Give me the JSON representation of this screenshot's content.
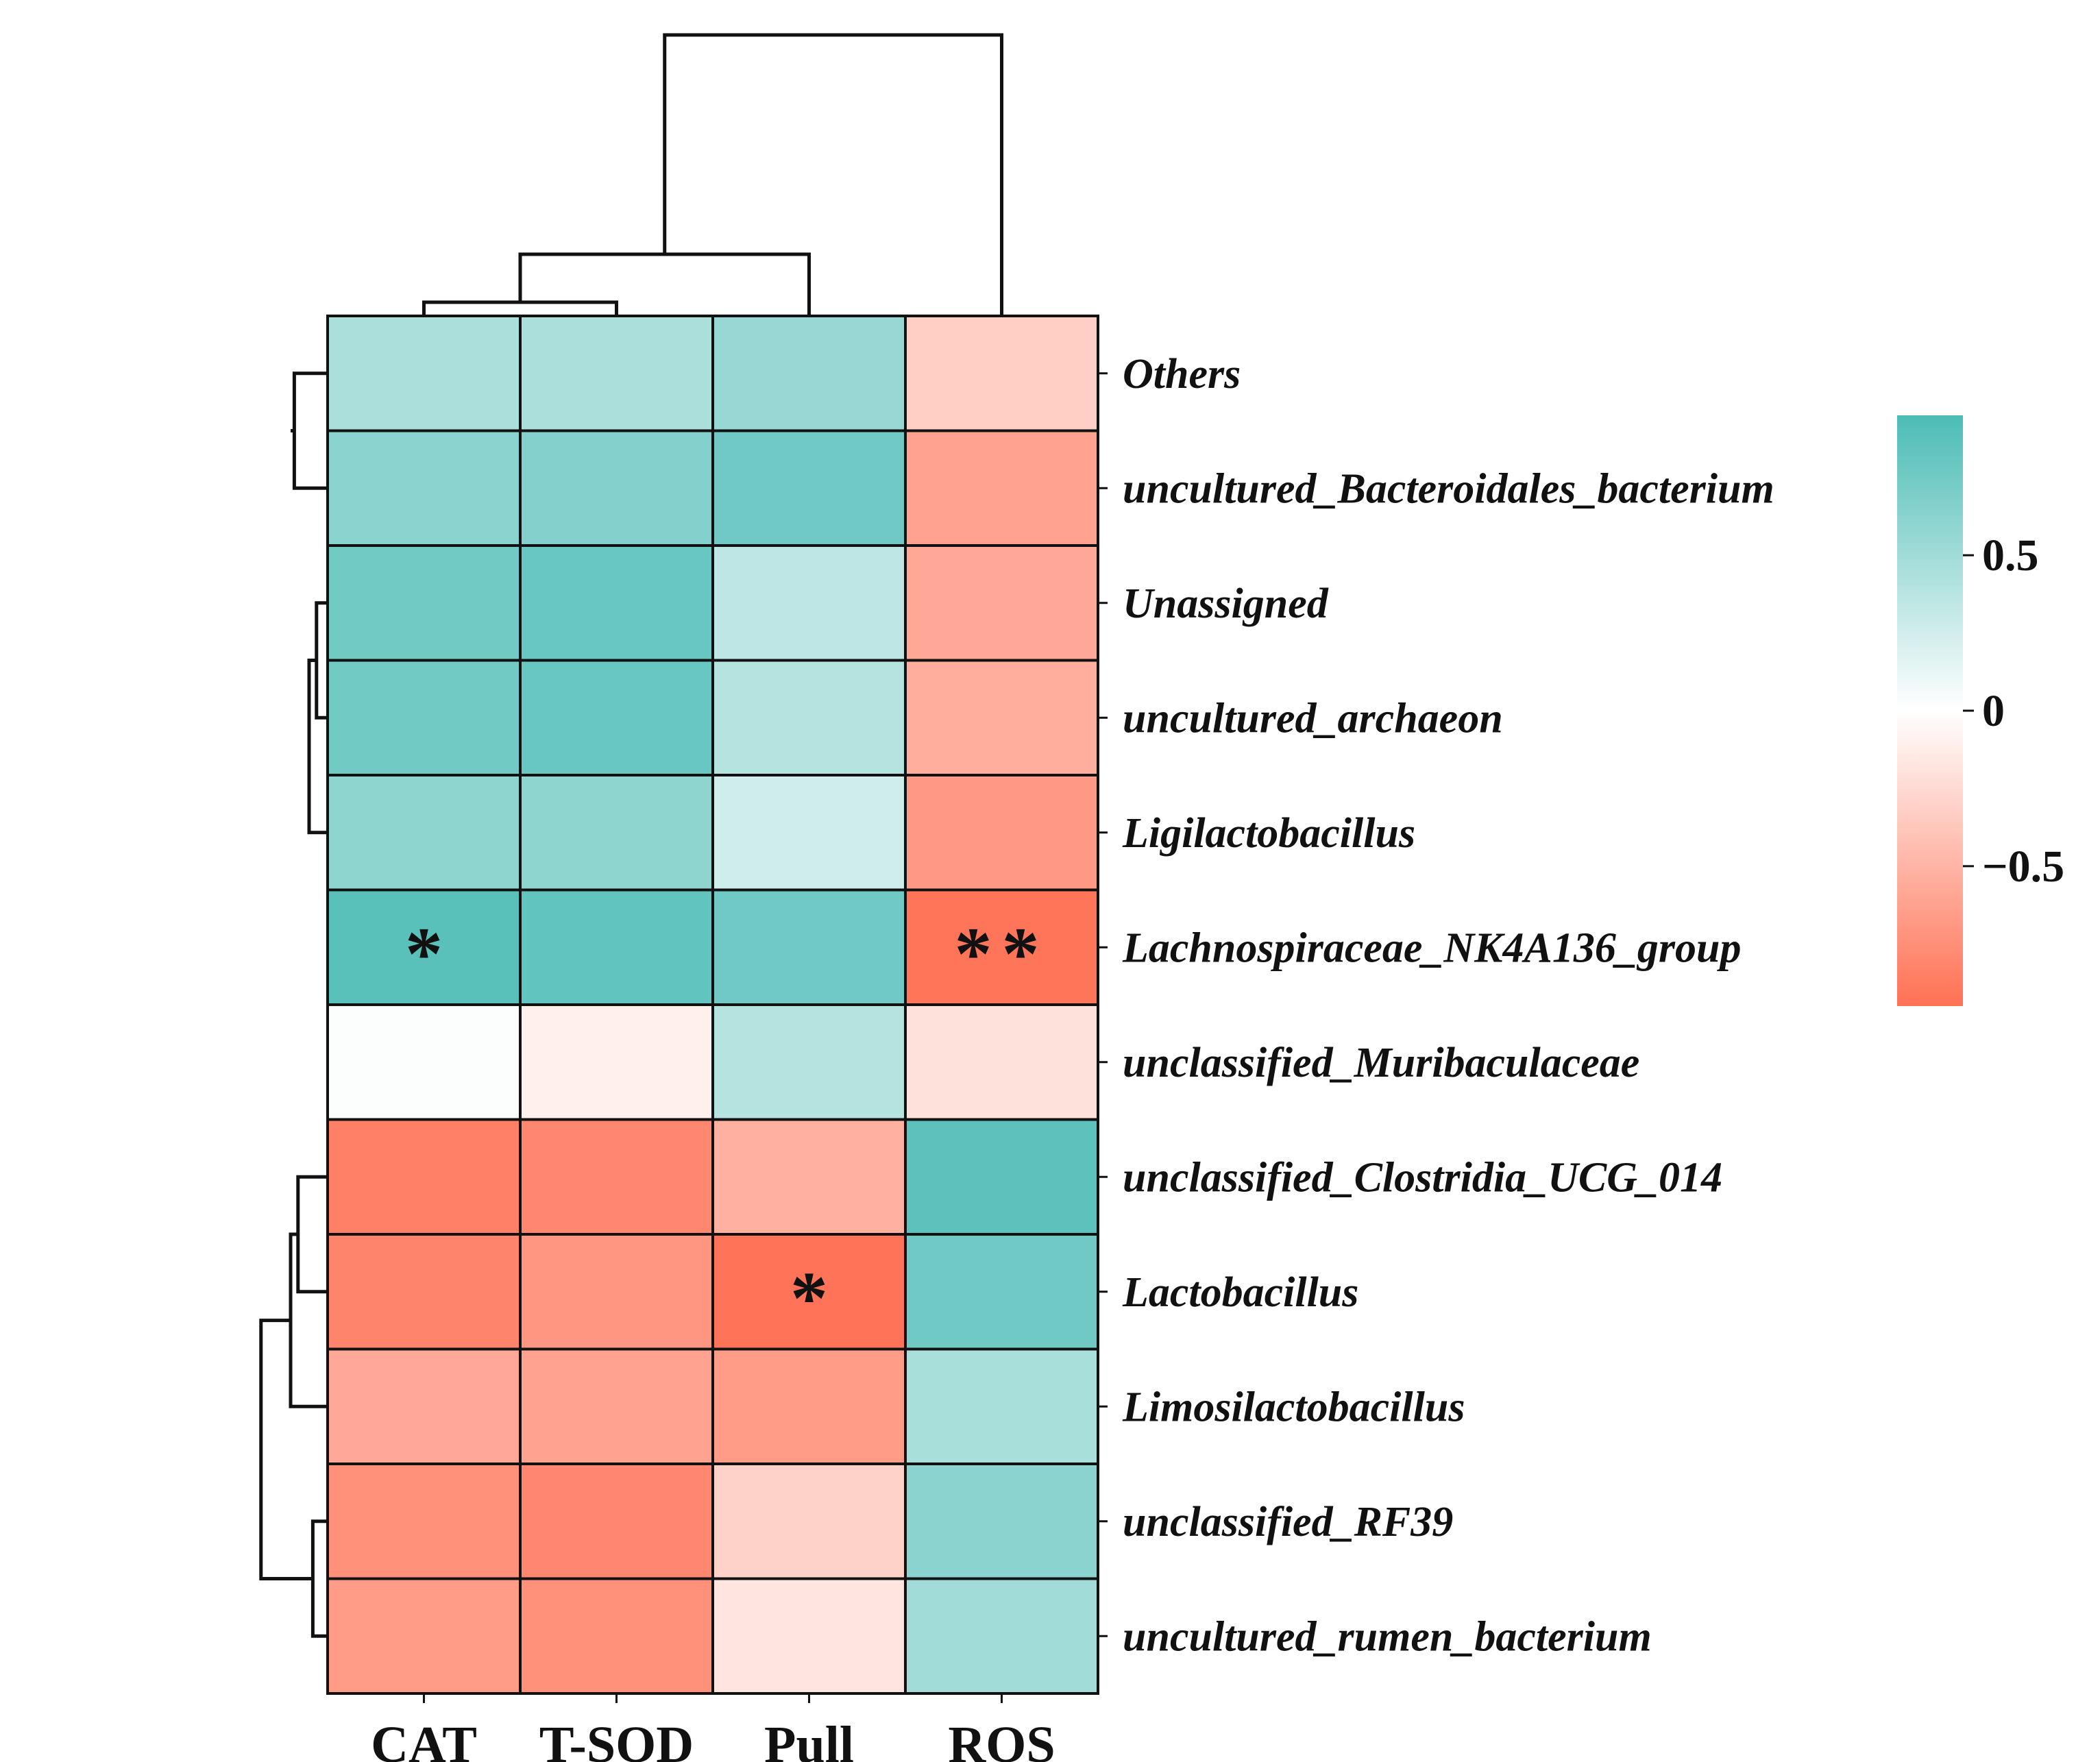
{
  "chart_data": {
    "type": "heatmap",
    "title": "",
    "columns": [
      "CAT",
      "T-SOD",
      "Pull",
      "ROS"
    ],
    "rows": [
      "Others",
      "uncultured_Bacteroidales_bacterium",
      "Unassigned",
      "uncultured_archaeon",
      "Ligilactobacillus",
      "Lachnospiraceae_NK4A136_group",
      "unclassified_Muribaculaceae",
      "unclassified_Clostridia_UCG_014",
      "Lactobacillus",
      "Limosilactobacillus",
      "unclassified_RF39",
      "uncultured_rumen_bacterium"
    ],
    "values": [
      [
        0.45,
        0.45,
        0.55,
        -0.32
      ],
      [
        0.62,
        0.66,
        0.76,
        -0.62
      ],
      [
        0.75,
        0.8,
        0.35,
        -0.58
      ],
      [
        0.75,
        0.8,
        0.4,
        -0.55
      ],
      [
        0.6,
        0.6,
        0.26,
        -0.68
      ],
      [
        0.88,
        0.84,
        0.76,
        -0.92
      ],
      [
        0.02,
        -0.1,
        0.4,
        -0.2
      ],
      [
        -0.85,
        -0.8,
        -0.52,
        0.86
      ],
      [
        -0.82,
        -0.7,
        -0.93,
        0.76
      ],
      [
        -0.58,
        -0.62,
        -0.66,
        0.46
      ],
      [
        -0.74,
        -0.8,
        -0.3,
        0.62
      ],
      [
        -0.66,
        -0.74,
        -0.18,
        0.5
      ]
    ],
    "significance": [
      [
        "",
        "",
        "",
        ""
      ],
      [
        "",
        "",
        "",
        ""
      ],
      [
        "",
        "",
        "",
        ""
      ],
      [
        "",
        "",
        "",
        ""
      ],
      [
        "",
        "",
        "",
        ""
      ],
      [
        "*",
        "",
        "",
        "**"
      ],
      [
        "",
        "",
        "",
        ""
      ],
      [
        "",
        "",
        "",
        ""
      ],
      [
        "",
        "",
        "*",
        ""
      ],
      [
        "",
        "",
        "",
        ""
      ],
      [
        "",
        "",
        "",
        ""
      ],
      [
        "",
        "",
        "",
        ""
      ]
    ],
    "colorbar": {
      "range": [
        -0.95,
        0.95
      ],
      "ticks": [
        {
          "value": 0.5,
          "label": "0.5"
        },
        {
          "value": 0,
          "label": "0"
        },
        {
          "value": -0.5,
          "label": "−0.5"
        }
      ],
      "colors": {
        "negative": "#ff7154",
        "zero": "#ffffff",
        "positive": "#4cbcb5"
      }
    },
    "col_dendrogram": [
      {
        "a": "CAT",
        "b": "T-SOD",
        "height": 0.02
      },
      {
        "a": "CAT+T-SOD",
        "b": "Pull",
        "height": 0.09
      },
      {
        "a": "CAT+T-SOD+Pull",
        "b": "ROS",
        "height": 0.41
      }
    ],
    "row_dendrogram": [
      {
        "a": "Others",
        "b": "uncultured_Bacteroidales_bacterium",
        "height": 0.09
      },
      {
        "a": "Unassigned",
        "b": "uncultured_archaeon",
        "height": 0.03
      },
      {
        "a": "(Unassigned,uncultured_archaeon)",
        "b": "Ligilactobacillus",
        "height": 0.05
      },
      {
        "a": "(Others,uncultured_Bacteroidales_bacterium)",
        "b": "(Unassigned,uncultured_archaeon,Ligilactobacillus)",
        "height": 0.1
      },
      {
        "a": "cluster_A",
        "b": "Lachnospiraceae_NK4A136_group",
        "height": 0.15
      },
      {
        "a": "cluster_A2",
        "b": "unclassified_Muribaculaceae",
        "height": 0.35
      },
      {
        "a": "unclassified_Clostridia_UCG_014",
        "b": "Lactobacillus",
        "height": 0.08
      },
      {
        "a": "(unclassified_Clostridia_UCG_014,Lactobacillus)",
        "b": "Limosilactobacillus",
        "height": 0.1
      },
      {
        "a": "unclassified_RF39",
        "b": "uncultured_rumen_bacterium",
        "height": 0.04
      },
      {
        "a": "cluster_B1",
        "b": "cluster_B2",
        "height": 0.18
      },
      {
        "a": "cluster_A_all",
        "b": "cluster_B_all",
        "height": 0.82
      }
    ]
  }
}
